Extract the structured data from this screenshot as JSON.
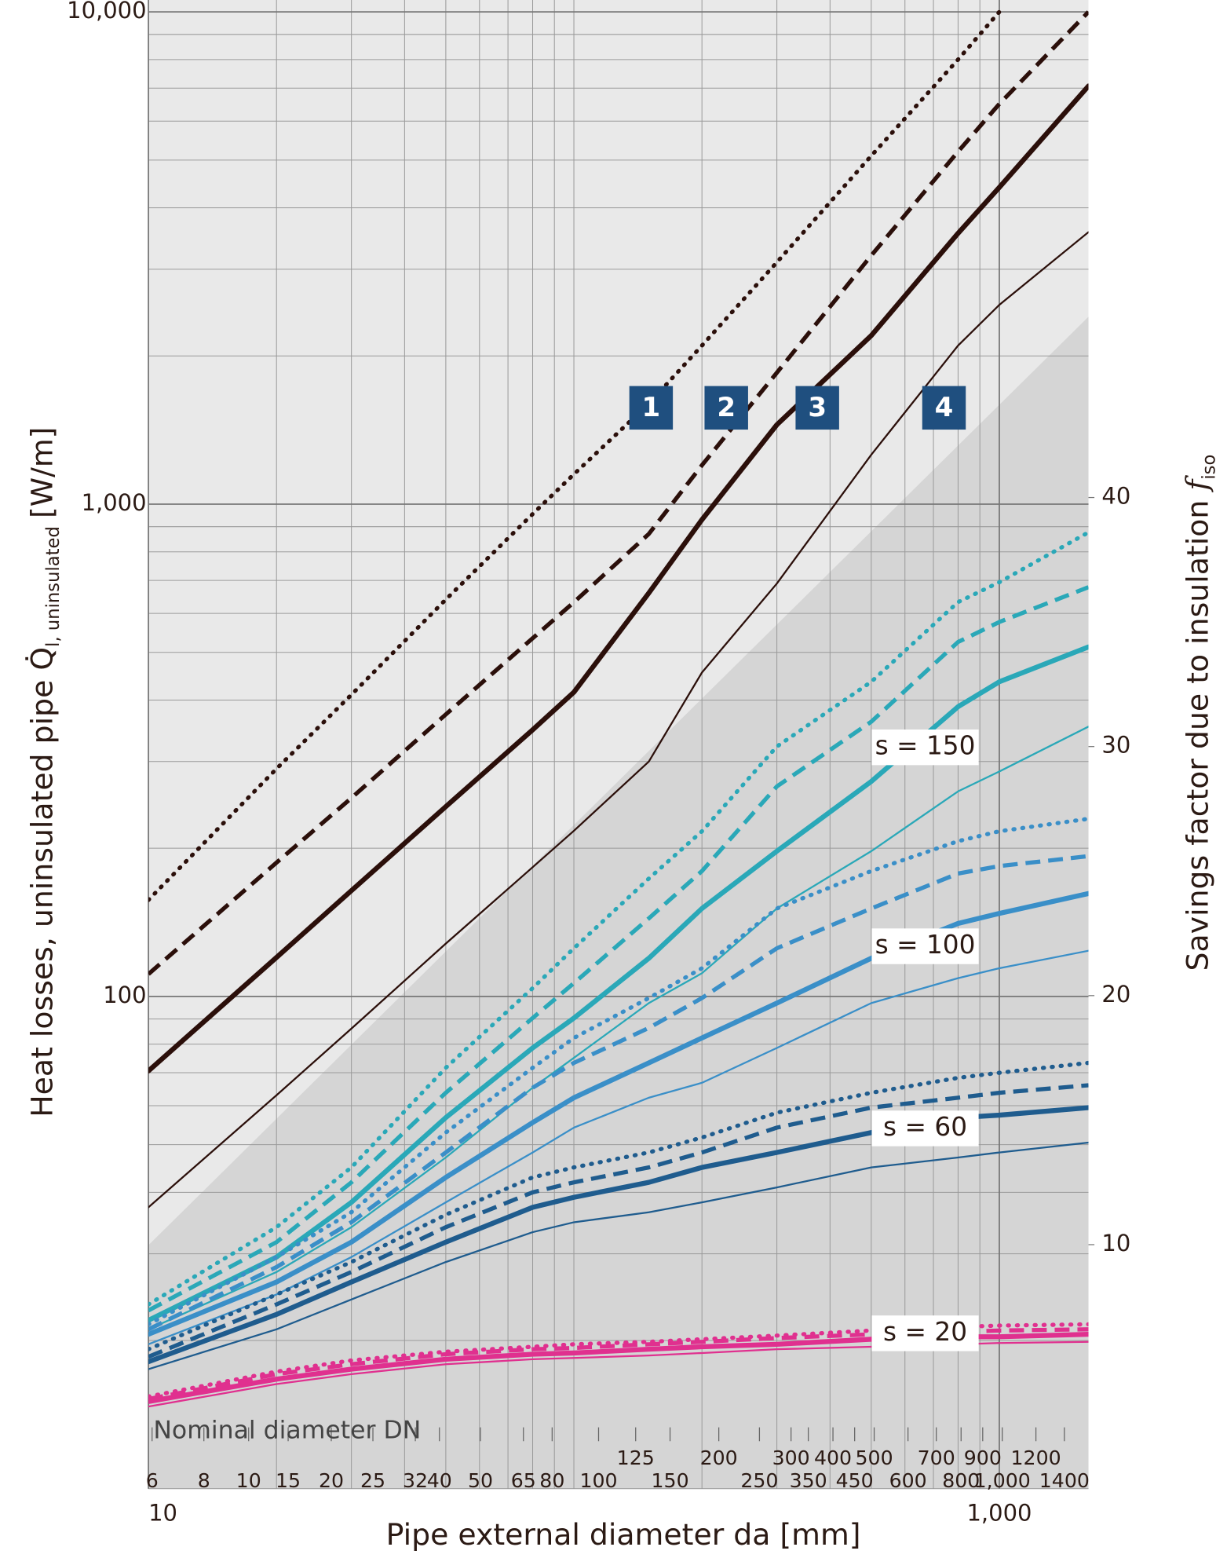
{
  "chart_data": {
    "type": "line",
    "y_label": {
      "text": "Heat losses, uninsulated pipe Q̇",
      "sub": "l, uninsulated",
      "unit": "[W/m]"
    },
    "y2_label": {
      "text": "Savings factor due to insulation ",
      "symbol": "f",
      "sub": "iso"
    },
    "x_label": "Pipe external diameter da [mm]",
    "x_log": true,
    "y_log": true,
    "xlim": [
      10,
      1620
    ],
    "ylim": [
      10,
      10000
    ],
    "y2lim": [
      0.2,
      59.5
    ],
    "xticks": [
      10,
      {
        "value": 1000,
        "label": "1,000"
      }
    ],
    "yticks": [
      100,
      {
        "value": 1000,
        "label": "1,000"
      },
      {
        "value": 10000,
        "label": "10,000"
      }
    ],
    "y2ticks": [
      10,
      20,
      30,
      40
    ],
    "grid": true,
    "x": [
      10,
      20,
      30,
      50,
      80,
      100,
      150,
      200,
      300,
      500,
      800,
      1000,
      1620
    ],
    "series": [
      {
        "name": "1",
        "color": "#2b0f0a",
        "style": "dotted",
        "values": [
          157,
          290,
          410,
          640,
          955,
          1150,
          1600,
          2100,
          3100,
          5100,
          8000,
          10000,
          null
        ]
      },
      {
        "name": "2",
        "color": "#2b0f0a",
        "style": "dashed",
        "values": [
          111,
          187,
          253,
          374,
          534,
          632,
          870,
          1200,
          1850,
          3200,
          5200,
          6500,
          10000
        ]
      },
      {
        "name": "3",
        "color": "#2b0f0a",
        "style": "thick",
        "values": [
          70.6,
          120,
          164,
          243,
          348,
          415,
          660,
          930,
          1450,
          2200,
          3550,
          4400,
          7070
        ]
      },
      {
        "name": "4",
        "color": "#2b0f0a",
        "style": "thin",
        "values": [
          37.3,
          63,
          86,
          128,
          183,
          217,
          300,
          455,
          690,
          1260,
          2100,
          2540,
          3570
        ]
      }
    ],
    "savings_groups": [
      {
        "name": "s = 150",
        "color": "#2aa8b8",
        "series": [
          {
            "style": "dotted",
            "axis": "y2",
            "values": [
              7.6,
              10.7,
              13.1,
              17.1,
              20.3,
              21.9,
              24.7,
              26.6,
              30.0,
              32.6,
              35.8,
              36.6,
              38.6
            ]
          },
          {
            "style": "dashed",
            "axis": "y2",
            "values": [
              7.36,
              10.1,
              12.5,
              16.1,
              19.1,
              20.5,
              23.1,
              25.0,
              28.4,
              31.0,
              34.2,
              35.0,
              36.4
            ]
          },
          {
            "style": "thick",
            "axis": "y2",
            "values": [
              6.96,
              9.5,
              11.7,
              15.1,
              17.9,
              19.1,
              21.5,
              23.5,
              25.8,
              28.6,
              31.6,
              32.6,
              34.0
            ]
          },
          {
            "style": "thin",
            "axis": "y2",
            "values": [
              6.6,
              8.9,
              10.7,
              13.5,
              16.3,
              17.5,
              19.7,
              20.9,
              23.5,
              25.8,
              28.2,
              29.0,
              30.8
            ]
          }
        ]
      },
      {
        "name": "s = 100",
        "color": "#3a8fc8",
        "series": [
          {
            "style": "dotted",
            "axis": "y2",
            "values": [
              6.8,
              9.5,
              11.3,
              14.5,
              17.1,
              18.3,
              19.9,
              21.1,
              23.5,
              25.0,
              26.2,
              26.6,
              27.1
            ]
          },
          {
            "style": "dashed",
            "axis": "y2",
            "values": [
              6.6,
              9.1,
              10.9,
              13.7,
              16.3,
              17.3,
              18.7,
              19.9,
              21.9,
              23.5,
              24.9,
              25.2,
              25.6
            ]
          },
          {
            "style": "thick",
            "axis": "y2",
            "values": [
              6.4,
              8.5,
              10.1,
              12.7,
              14.9,
              15.9,
              17.3,
              18.3,
              19.7,
              21.5,
              22.9,
              23.3,
              24.1
            ]
          },
          {
            "style": "thin",
            "axis": "y2",
            "values": [
              6.0,
              8.0,
              9.5,
              11.7,
              13.7,
              14.7,
              15.9,
              16.5,
              17.9,
              19.7,
              20.7,
              21.1,
              21.8
            ]
          }
        ]
      },
      {
        "name": "s = 60",
        "color": "#1f5c8e",
        "series": [
          {
            "style": "dotted",
            "axis": "y2",
            "values": [
              5.8,
              8.0,
              9.3,
              11.2,
              12.7,
              13.1,
              13.7,
              14.3,
              15.3,
              16.1,
              16.7,
              16.9,
              17.3
            ]
          },
          {
            "style": "dashed",
            "axis": "y2",
            "values": [
              5.5,
              7.6,
              8.9,
              10.7,
              12.1,
              12.5,
              13.1,
              13.7,
              14.7,
              15.5,
              15.9,
              16.1,
              16.4
            ]
          },
          {
            "style": "thick",
            "axis": "y2",
            "values": [
              5.3,
              7.2,
              8.5,
              10.1,
              11.5,
              11.9,
              12.5,
              13.1,
              13.7,
              14.5,
              15.1,
              15.2,
              15.5
            ]
          },
          {
            "style": "thin",
            "axis": "y2",
            "values": [
              5.0,
              6.6,
              7.8,
              9.3,
              10.5,
              10.9,
              11.3,
              11.7,
              12.3,
              13.1,
              13.5,
              13.7,
              14.1
            ]
          }
        ]
      },
      {
        "name": "s = 20",
        "color": "#e0308f",
        "series": [
          {
            "style": "dotted",
            "axis": "y2",
            "values": [
              3.9,
              4.9,
              5.35,
              5.7,
              5.9,
              6.0,
              6.1,
              6.2,
              6.35,
              6.55,
              6.7,
              6.75,
              6.8
            ]
          },
          {
            "style": "dashed",
            "axis": "y2",
            "values": [
              3.8,
              4.8,
              5.2,
              5.6,
              5.8,
              5.85,
              6.0,
              6.1,
              6.25,
              6.4,
              6.5,
              6.55,
              6.6
            ]
          },
          {
            "style": "thick",
            "axis": "y2",
            "values": [
              3.7,
              4.6,
              5.0,
              5.4,
              5.6,
              5.65,
              5.8,
              5.9,
              6.0,
              6.2,
              6.3,
              6.3,
              6.4
            ]
          },
          {
            "style": "thin",
            "axis": "y2",
            "values": [
              3.5,
              4.4,
              4.8,
              5.2,
              5.4,
              5.45,
              5.55,
              5.65,
              5.8,
              5.9,
              6.0,
              6.05,
              6.1
            ]
          }
        ]
      }
    ],
    "dn_scale": {
      "title": "Nominal diameter DN",
      "lower": {
        "labels": [
          "6",
          "8",
          "10",
          "15",
          "20",
          "25",
          "32",
          "40",
          "50",
          "65",
          "80",
          "100",
          "150",
          "250",
          "350",
          "450",
          "600",
          "800",
          "1,000",
          "1400"
        ],
        "da": [
          10.2,
          13.5,
          17.2,
          21.3,
          26.9,
          33.7,
          42.4,
          48.3,
          60.3,
          76.1,
          88.9,
          114.3,
          168.3,
          273,
          355.6,
          457,
          610,
          813,
          1016,
          1422
        ]
      },
      "upper": {
        "labels": [
          "125",
          "200",
          "300",
          "400",
          "500",
          "700",
          "900",
          "1200"
        ],
        "da": [
          139.7,
          219.1,
          323.9,
          406.4,
          508,
          711,
          914,
          1219
        ]
      }
    }
  }
}
